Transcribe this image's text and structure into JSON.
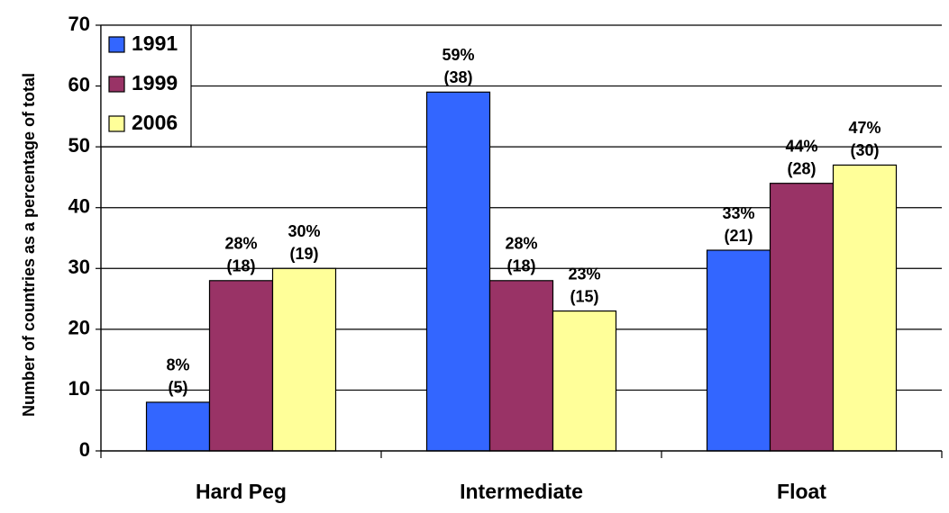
{
  "chart_data": {
    "type": "bar",
    "title": "",
    "xlabel": "",
    "ylabel": "Number of countries as a percentage of total",
    "ylim": [
      0,
      70
    ],
    "yticks": [
      "0",
      "10",
      "20",
      "30",
      "40",
      "50",
      "60",
      "70"
    ],
    "grid": true,
    "legend_position": "top-left",
    "categories": [
      "Hard Peg",
      "Intermediate",
      "Float"
    ],
    "series": [
      {
        "name": "1991",
        "color": "#3366ff",
        "values": [
          8,
          59,
          33
        ],
        "labels": [
          [
            "8%",
            "(5)"
          ],
          [
            "59%",
            "(38)"
          ],
          [
            "33%",
            "(21)"
          ]
        ]
      },
      {
        "name": "1999",
        "color": "#993366",
        "values": [
          28,
          28,
          44
        ],
        "labels": [
          [
            "28%",
            "(18)"
          ],
          [
            "28%",
            "(18)"
          ],
          [
            "44%",
            "(28)"
          ]
        ]
      },
      {
        "name": "2006",
        "color": "#ffff99",
        "values": [
          30,
          23,
          47
        ],
        "labels": [
          [
            "30%",
            "(19)"
          ],
          [
            "23%",
            "(15)"
          ],
          [
            "47%",
            "(30)"
          ]
        ]
      }
    ]
  }
}
